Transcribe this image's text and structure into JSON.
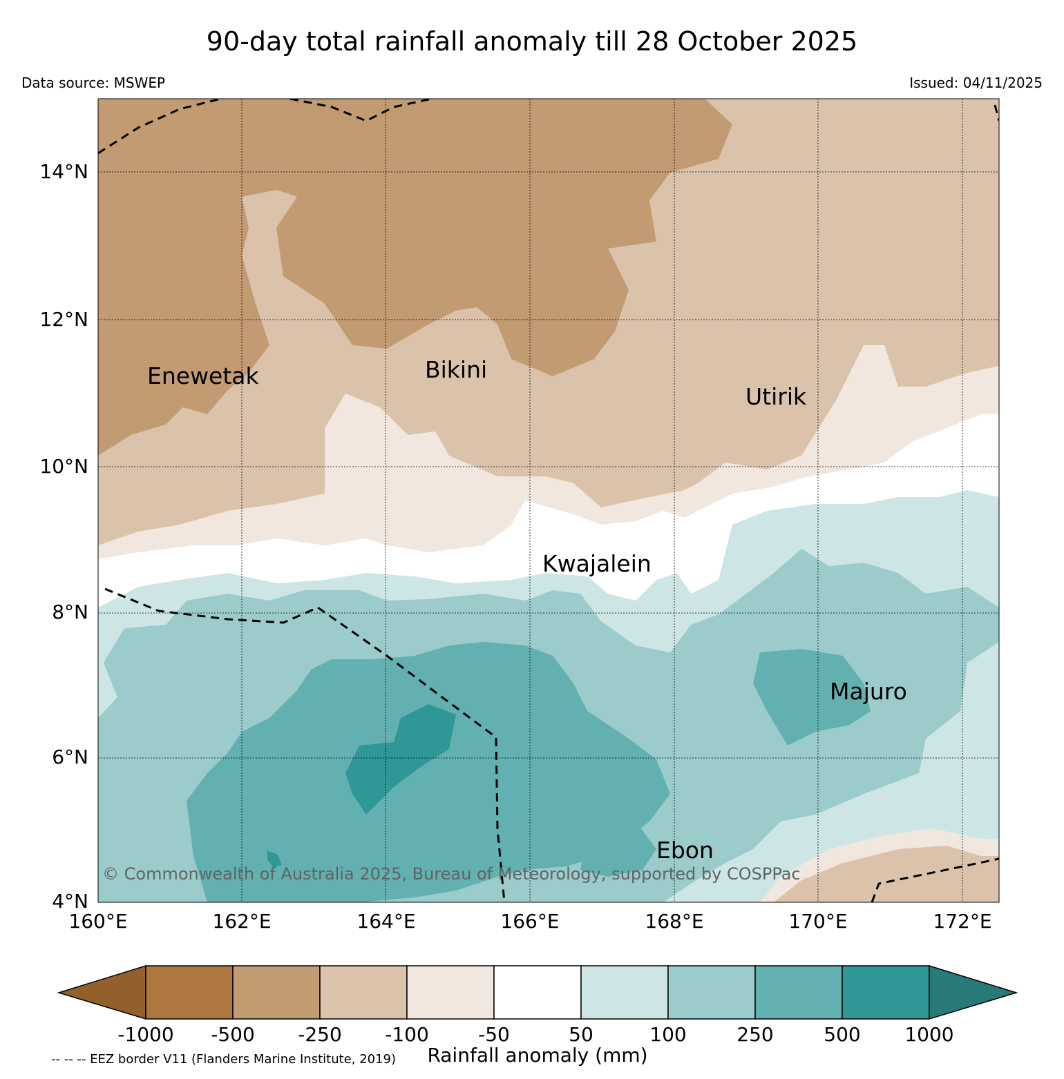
{
  "header": {
    "title": "90-day total rainfall anomaly till 28 October 2025",
    "data_source": "Data source: MSWEP",
    "issued": "Issued: 04/11/2025"
  },
  "map": {
    "lon_range": [
      160,
      172.5
    ],
    "lat_range": [
      4,
      15
    ],
    "lat_ticks": [
      {
        "value": 14,
        "label": "14°N"
      },
      {
        "value": 12,
        "label": "12°N"
      },
      {
        "value": 10,
        "label": "10°N"
      },
      {
        "value": 8,
        "label": "8°N"
      },
      {
        "value": 6,
        "label": "6°N"
      },
      {
        "value": 4,
        "label": "4°N"
      }
    ],
    "lon_ticks": [
      {
        "value": 160,
        "label": "160°E"
      },
      {
        "value": 162,
        "label": "162°E"
      },
      {
        "value": 164,
        "label": "164°E"
      },
      {
        "value": 166,
        "label": "166°E"
      },
      {
        "value": 168,
        "label": "168°E"
      },
      {
        "value": 170,
        "label": "170°E"
      },
      {
        "value": 172,
        "label": "172°E"
      }
    ],
    "places": [
      {
        "name": "Enewetak",
        "lon": 162.2,
        "lat": 11.2
      },
      {
        "name": "Bikini",
        "lon": 165.2,
        "lat": 11.35
      },
      {
        "name": "Utirik",
        "lon": 169.8,
        "lat": 10.95
      },
      {
        "name": "Kwajalein",
        "lon": 167.0,
        "lat": 8.6
      },
      {
        "name": "Majuro",
        "lon": 171.2,
        "lat": 6.9
      },
      {
        "name": "Ebon",
        "lon": 168.2,
        "lat": 4.7
      }
    ],
    "copyright": "© Commonwealth of Australia 2025, Bureau of Meteorology, supported by COSPPac"
  },
  "colorbar": {
    "title": "Rainfall anomaly (mm)",
    "labels": [
      "-1000",
      "-500",
      "-250",
      "-100",
      "-50",
      "50",
      "100",
      "250",
      "500",
      "1000"
    ],
    "colors": [
      "#935f2a",
      "#ad7840",
      "#c39b73",
      "#dbc3ab",
      "#f1e7de",
      "#ffffff",
      "#cde5e5",
      "#9bcbcb",
      "#63b0b0",
      "#2f9896",
      "#277a78"
    ]
  },
  "footnote": "-- -- -- EEZ border V11 (Flanders Marine Institute, 2019)"
}
